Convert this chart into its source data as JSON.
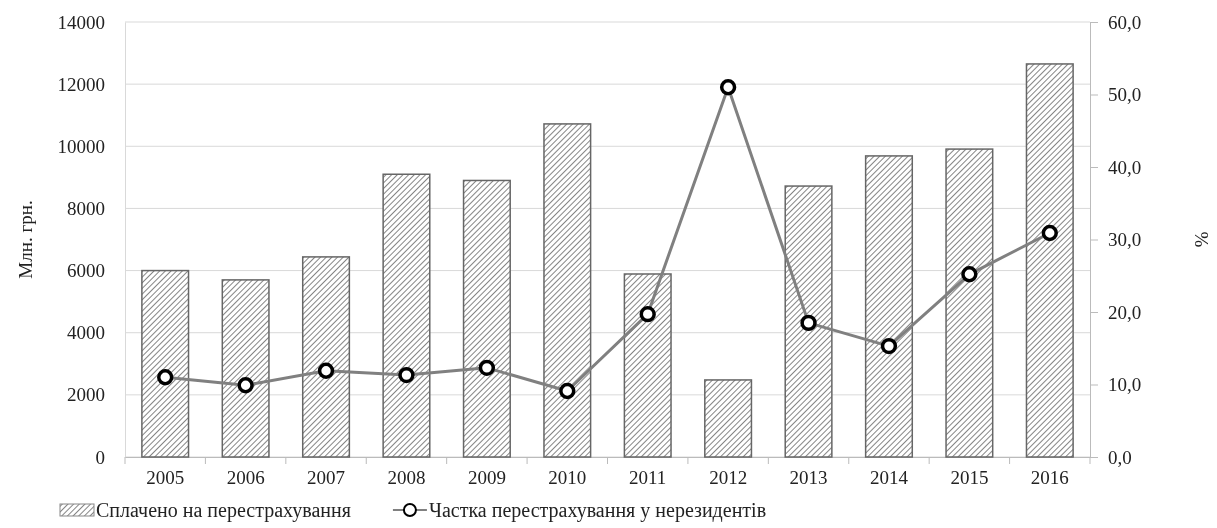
{
  "chart_data": {
    "type": "bar",
    "ylabel": "Млн. грн.",
    "y2label": "%",
    "categories": [
      "2005",
      "2006",
      "2007",
      "2008",
      "2009",
      "2010",
      "2011",
      "2012",
      "2013",
      "2014",
      "2015",
      "2016"
    ],
    "series": [
      {
        "name": "Сплачено на перестрахування",
        "color": "#666666",
        "values": [
          6000,
          5700,
          6440,
          9100,
          8900,
          10720,
          5890,
          2480,
          8720,
          9690,
          9910,
          12650
        ]
      },
      {
        "name": "Частка перестрахування у нерезидентів",
        "type": "line",
        "axis": "y2",
        "color": "#808080",
        "marker": "circle",
        "values": [
          11.0,
          9.9,
          11.9,
          11.3,
          12.3,
          9.1,
          19.7,
          51.0,
          18.5,
          15.3,
          25.2,
          30.9
        ]
      }
    ],
    "ylim": [
      0,
      14000
    ],
    "yticks": [
      0,
      2000,
      4000,
      6000,
      8000,
      10000,
      12000,
      14000
    ],
    "y2lim": [
      0,
      60
    ],
    "y2ticks": [
      {
        "value": 0,
        "label": "0,0"
      },
      {
        "value": 10,
        "label": "10,0"
      },
      {
        "value": 20,
        "label": "20,0"
      },
      {
        "value": 30,
        "label": "30,0"
      },
      {
        "value": 40,
        "label": "40,0"
      },
      {
        "value": 50,
        "label": "50,0"
      },
      {
        "value": 60,
        "label": "60,0"
      }
    ],
    "grid": "y",
    "legend": "bottom"
  }
}
